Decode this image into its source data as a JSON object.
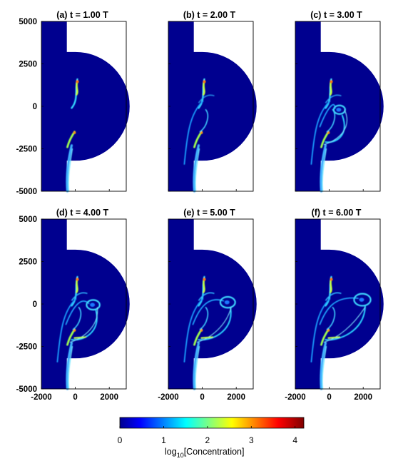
{
  "chart_data": {
    "type": "heatmap",
    "panels": [
      {
        "label": "(a) t = 1.00 T",
        "time_T": 1
      },
      {
        "label": "(b) t = 2.00 T",
        "time_T": 2
      },
      {
        "label": "(c) t = 3.00 T",
        "time_T": 3
      },
      {
        "label": "(d) t = 4.00 T",
        "time_T": 4
      },
      {
        "label": "(e) t = 5.00 T",
        "time_T": 5
      },
      {
        "label": "(f) t = 6.00 T",
        "time_T": 6
      }
    ],
    "xlim": [
      -2000,
      3000
    ],
    "ylim": [
      -5000,
      5000
    ],
    "x_ticks": [
      -2000,
      0,
      2000
    ],
    "y_ticks": [
      5000,
      2500,
      0,
      -2500,
      -5000
    ],
    "colorbar": {
      "label_main": "log",
      "label_sub": "10",
      "label_rest": "[Concentration]",
      "range": [
        0,
        4.2
      ],
      "ticks": [
        0,
        1,
        2,
        3,
        4
      ],
      "colormap": "jet"
    },
    "domain_shape": "channel x < -500 plus half-disc of radius 3200 centered at origin",
    "grid": false,
    "legend": "none"
  }
}
